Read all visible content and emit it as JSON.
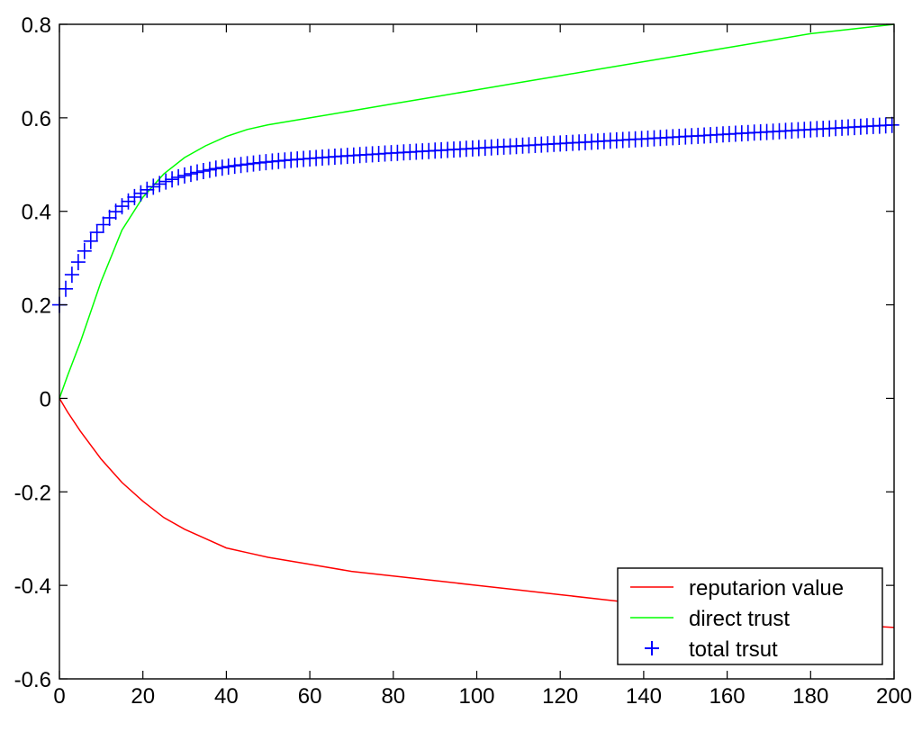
{
  "chart_data": {
    "type": "line",
    "xlim": [
      0,
      200
    ],
    "ylim": [
      -0.6,
      0.8
    ],
    "x_ticks": [
      0,
      20,
      40,
      60,
      80,
      100,
      120,
      140,
      160,
      180,
      200
    ],
    "y_ticks": [
      -0.6,
      -0.4,
      -0.2,
      0,
      0.2,
      0.4,
      0.6,
      0.8
    ],
    "x_tick_labels": [
      "0",
      "20",
      "40",
      "60",
      "80",
      "100",
      "120",
      "140",
      "160",
      "180",
      "200"
    ],
    "y_tick_labels": [
      "-0.6",
      "-0.4",
      "-0.2",
      "0",
      "0.2",
      "0.4",
      "0.6",
      "0.8"
    ],
    "grid": false,
    "legend_position": "bottom-right",
    "series": [
      {
        "name": "reputarion value",
        "color": "#ff0000",
        "style": "line",
        "x": [
          0,
          2,
          5,
          10,
          15,
          20,
          25,
          30,
          35,
          40,
          45,
          50,
          60,
          70,
          80,
          90,
          100,
          110,
          120,
          130,
          140,
          150,
          160,
          170,
          180,
          190,
          200
        ],
        "y": [
          0,
          -0.03,
          -0.07,
          -0.13,
          -0.18,
          -0.22,
          -0.255,
          -0.28,
          -0.3,
          -0.32,
          -0.33,
          -0.34,
          -0.355,
          -0.37,
          -0.38,
          -0.39,
          -0.4,
          -0.41,
          -0.42,
          -0.43,
          -0.44,
          -0.45,
          -0.46,
          -0.47,
          -0.48,
          -0.485,
          -0.49
        ]
      },
      {
        "name": "direct trust",
        "color": "#00ff00",
        "style": "line",
        "x": [
          0,
          2,
          5,
          10,
          15,
          20,
          25,
          30,
          35,
          40,
          45,
          50,
          60,
          70,
          80,
          90,
          100,
          110,
          120,
          130,
          140,
          150,
          160,
          170,
          180,
          190,
          200
        ],
        "y": [
          0,
          0.05,
          0.12,
          0.25,
          0.36,
          0.43,
          0.48,
          0.515,
          0.54,
          0.56,
          0.575,
          0.585,
          0.6,
          0.615,
          0.63,
          0.645,
          0.66,
          0.675,
          0.69,
          0.705,
          0.72,
          0.735,
          0.75,
          0.765,
          0.78,
          0.79,
          0.8
        ]
      },
      {
        "name": "total trsut",
        "color": "#0000ff",
        "style": "plus-markers",
        "function": "0.585 - 0.0005*(200-x) - 0.285*exp(-x/12)",
        "x_range": [
          0,
          200
        ],
        "x_step": 1.5
      }
    ]
  }
}
